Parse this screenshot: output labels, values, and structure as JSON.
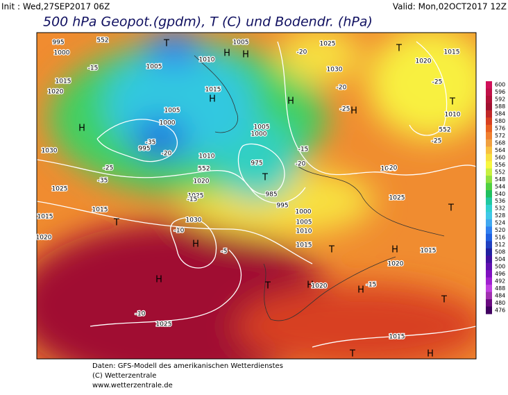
{
  "header": {
    "init": "Init : Wed,27SEP2017 06Z",
    "valid": "Valid: Mon,02OCT2017 12Z",
    "title": "500 hPa Geopot.(gpdm), T (C) und Bodendr. (hPa)"
  },
  "colorbar": {
    "labels": [
      600,
      596,
      592,
      588,
      584,
      580,
      576,
      572,
      568,
      564,
      560,
      556,
      552,
      548,
      544,
      540,
      536,
      532,
      528,
      524,
      520,
      516,
      512,
      508,
      504,
      500,
      496,
      492,
      488,
      484,
      480,
      476
    ],
    "colors": [
      "#d0105a",
      "#c01048",
      "#b01038",
      "#a01030",
      "#c02828",
      "#d84020",
      "#e86020",
      "#f08030",
      "#f0a040",
      "#f8c040",
      "#f8e040",
      "#f8f840",
      "#c8f040",
      "#90e040",
      "#50d040",
      "#20c060",
      "#20c8a0",
      "#30d0d0",
      "#40c8e8",
      "#40a8f0",
      "#3080f0",
      "#2060e0",
      "#2040c0",
      "#2020a0",
      "#4010a0",
      "#6010b0",
      "#8010c0",
      "#a020d0",
      "#c040e0",
      "#a030b0",
      "#6a0a80",
      "#400060"
    ]
  },
  "map": {
    "labels": [
      "T",
      "995",
      "1000",
      "552",
      "1005",
      "H",
      "H",
      "1005",
      "1010",
      "1015",
      "H",
      "-15",
      "1015",
      "1020",
      "H",
      "1030",
      "1005",
      "1000",
      "995",
      "-35",
      "-20",
      "1010",
      "-25",
      "-35",
      "1025",
      "1015",
      "T",
      "1030",
      "H",
      "-10",
      "-5",
      "H",
      "1025",
      "-10",
      "T",
      "1005",
      "1000",
      "T",
      "975",
      "985",
      "995",
      "1000",
      "1005",
      "1010",
      "1015",
      "H",
      "1025",
      "1030",
      "H",
      "T",
      "1020",
      "1015",
      "T",
      "1010",
      "552",
      "1030",
      "1025",
      "T",
      "T",
      "H",
      "1020",
      "1015",
      "H",
      "1020",
      "H",
      "-15",
      "T",
      "1015",
      "T",
      "H",
      "1020",
      "1015",
      "552",
      "1020",
      "1025",
      "-15",
      "-20",
      "-15",
      "-20",
      "-25",
      "-20",
      "-25",
      "-25",
      "-20"
    ]
  },
  "footer": {
    "lines": [
      "Daten: GFS-Modell des amerikanischen Wetterdienstes",
      "(C) Wetterzentrale",
      "www.wetterzentrale.de"
    ]
  }
}
